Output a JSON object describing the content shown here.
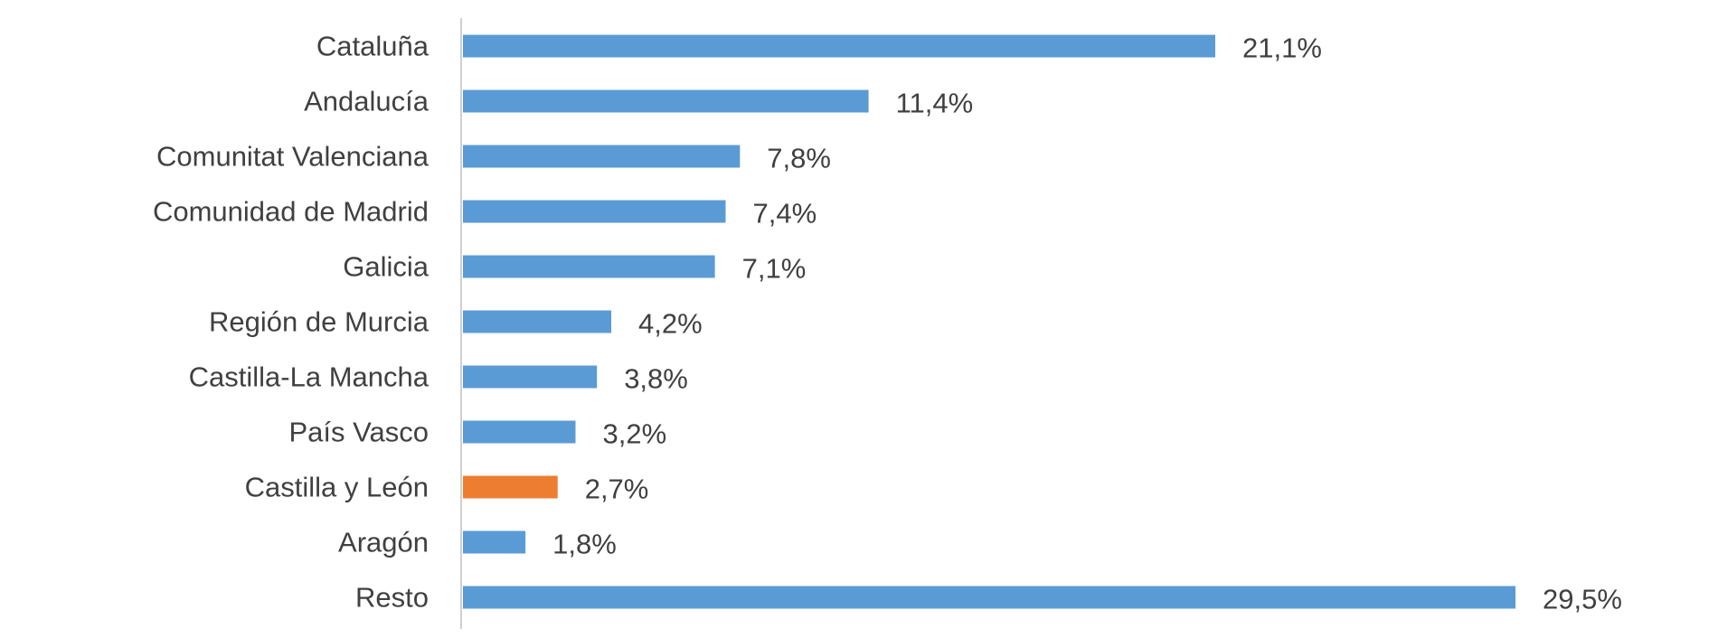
{
  "colors": {
    "bar_default": "#5b9bd5",
    "bar_highlight": "#ed7d31",
    "text": "#404040",
    "axis": "#d0d0d0"
  },
  "chart_data": {
    "type": "bar",
    "orientation": "horizontal",
    "categories": [
      "Cataluña",
      "Andalucía",
      "Comunitat Valenciana",
      "Comunidad de Madrid",
      "Galicia",
      "Región de Murcia",
      "Castilla-La Mancha",
      "País Vasco",
      "Castilla y León",
      "Aragón",
      "Resto"
    ],
    "values": [
      21.1,
      11.4,
      7.8,
      7.4,
      7.1,
      4.2,
      3.8,
      3.2,
      2.7,
      1.8,
      29.5
    ],
    "value_labels": [
      "21,1%",
      "11,4%",
      "7,8%",
      "7,4%",
      "7,1%",
      "4,2%",
      "3,8%",
      "3,2%",
      "2,7%",
      "1,8%",
      "29,5%"
    ],
    "highlight_category": "Castilla y León",
    "unit": "%",
    "title": "",
    "xlabel": "",
    "ylabel": "",
    "xlim": [
      0,
      29.5
    ],
    "grid": false,
    "legend": "none"
  }
}
